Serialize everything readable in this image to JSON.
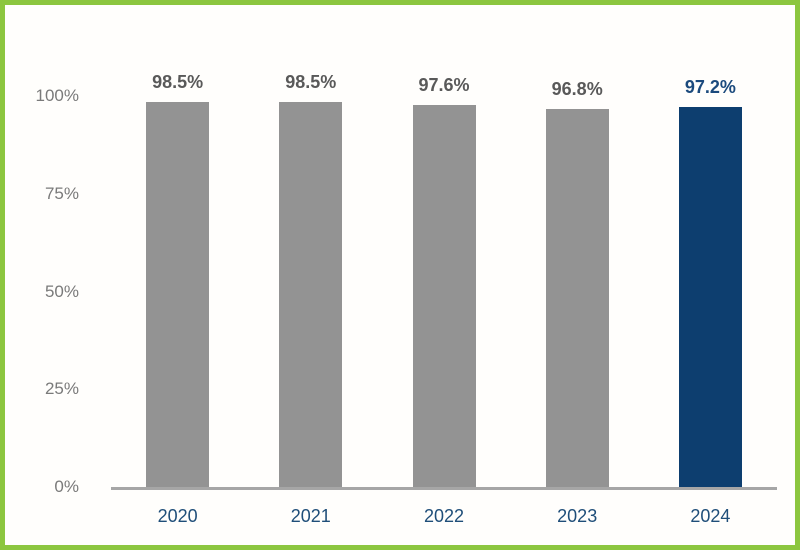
{
  "frame": {
    "border_color": "#8CC63F",
    "background": "#ffffff"
  },
  "chart_data": {
    "type": "bar",
    "title": "",
    "xlabel": "",
    "ylabel": "",
    "categories": [
      "2020",
      "2021",
      "2022",
      "2023",
      "2024"
    ],
    "values": [
      98.5,
      98.5,
      97.6,
      96.8,
      97.2
    ],
    "bar_labels": [
      "98.5%",
      "98.5%",
      "97.6%",
      "96.8%",
      "97.2%"
    ],
    "highlight_index": 4,
    "ylim": [
      0,
      100
    ],
    "yticks": [
      {
        "value": 0,
        "label": "0%"
      },
      {
        "value": 25,
        "label": "25%"
      },
      {
        "value": 50,
        "label": "50%"
      },
      {
        "value": 75,
        "label": "75%"
      },
      {
        "value": 100,
        "label": "100%"
      }
    ],
    "grid": false,
    "legend": null,
    "colors": {
      "default_bar": "#939393",
      "highlight_bar": "#0d3e6f",
      "default_value_label": "#595959",
      "highlight_value_label": "#1b4a7d",
      "category_label": "#1f4e79",
      "ytick_label": "#7a7a7a",
      "axis_line": "#a6a6a6"
    }
  }
}
